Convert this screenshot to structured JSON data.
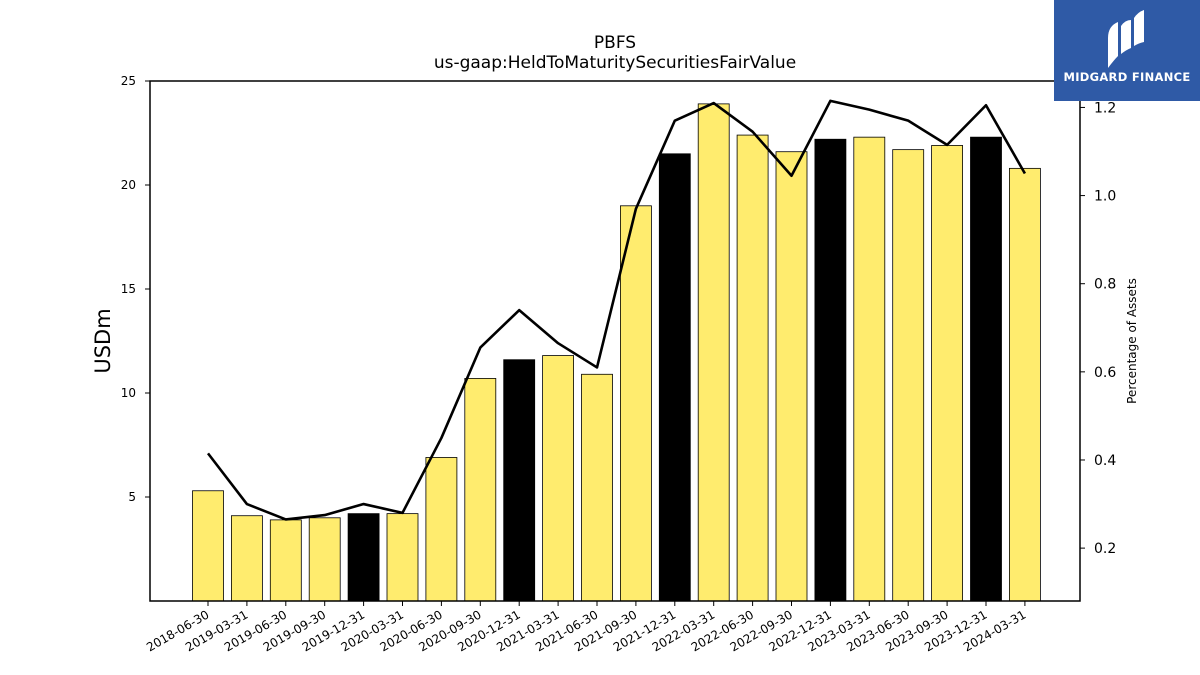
{
  "chart_data": {
    "type": "bar",
    "title": "PBFS",
    "subtitle": "us-gaap:HeldToMaturitySecuritiesFairValue",
    "ylabel": "USDm",
    "ylabel_right": "Percentage of Assets",
    "ylim": [
      0,
      25
    ],
    "ylim_right": [
      0.08,
      1.26
    ],
    "yticks": [
      5,
      10,
      15,
      20,
      25
    ],
    "yticks_right": [
      0.2,
      0.4,
      0.6,
      0.8,
      1.0,
      1.2
    ],
    "grid": false,
    "categories": [
      "2018-06-30",
      "2019-03-31",
      "2019-06-30",
      "2019-09-30",
      "2019-12-31",
      "2020-03-31",
      "2020-06-30",
      "2020-09-30",
      "2020-12-31",
      "2021-03-31",
      "2021-06-30",
      "2021-09-30",
      "2021-12-31",
      "2022-03-31",
      "2022-06-30",
      "2022-09-30",
      "2022-12-31",
      "2023-03-31",
      "2023-06-30",
      "2023-09-30",
      "2023-12-31",
      "2024-03-31"
    ],
    "series": [
      {
        "type": "bar",
        "values": [
          5.3,
          4.1,
          3.9,
          4.0,
          4.2,
          4.2,
          6.9,
          10.7,
          11.6,
          11.8,
          10.9,
          19.0,
          21.5,
          23.9,
          22.4,
          21.6,
          22.2,
          22.3,
          21.7,
          21.9,
          22.3,
          20.8
        ],
        "colors": [
          "#ffec6e",
          "#ffec6e",
          "#ffec6e",
          "#ffec6e",
          "#000000",
          "#ffec6e",
          "#ffec6e",
          "#ffec6e",
          "#000000",
          "#ffec6e",
          "#ffec6e",
          "#ffec6e",
          "#000000",
          "#ffec6e",
          "#ffec6e",
          "#ffec6e",
          "#000000",
          "#ffec6e",
          "#ffec6e",
          "#ffec6e",
          "#000000",
          "#ffec6e"
        ]
      },
      {
        "type": "line",
        "axis": "right",
        "color": "#000000",
        "values": [
          0.415,
          0.3,
          0.265,
          0.275,
          0.3,
          0.28,
          0.45,
          0.655,
          0.74,
          0.665,
          0.61,
          0.97,
          1.17,
          1.21,
          1.145,
          1.045,
          1.215,
          1.195,
          1.17,
          1.115,
          1.205,
          1.05
        ]
      }
    ]
  },
  "logo": {
    "text": "MIDGARD FINANCE",
    "background": "#2f5aa6",
    "icon": "midgard-logo-icon"
  }
}
